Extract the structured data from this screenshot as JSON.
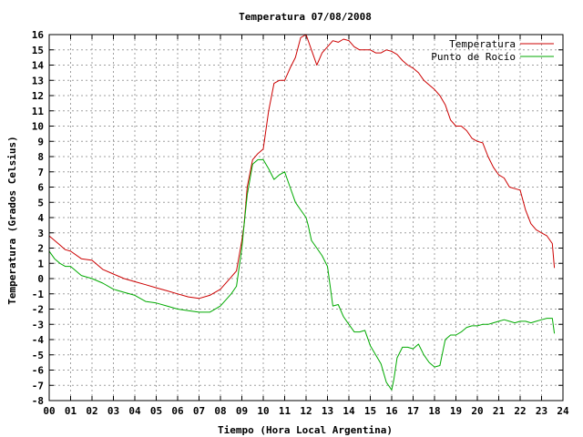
{
  "chart_data": {
    "type": "line",
    "title": "Temperatura 07/08/2008",
    "xlabel": "Tiempo (Hora Local Argentina)",
    "ylabel": "Temperatura (Grados Celsius)",
    "xlim": [
      0,
      24
    ],
    "ylim": [
      -8,
      16
    ],
    "x_ticks": [
      "00",
      "01",
      "02",
      "03",
      "04",
      "05",
      "06",
      "07",
      "08",
      "09",
      "10",
      "11",
      "12",
      "13",
      "14",
      "15",
      "16",
      "17",
      "18",
      "19",
      "20",
      "21",
      "22",
      "23",
      "24"
    ],
    "y_ticks": [
      -8,
      -7,
      -6,
      -5,
      -4,
      -3,
      -2,
      -1,
      0,
      1,
      2,
      3,
      4,
      5,
      6,
      7,
      8,
      9,
      10,
      11,
      12,
      13,
      14,
      15,
      16
    ],
    "grid": true,
    "legend_position": "top-right",
    "series": [
      {
        "name": "Temperatura",
        "color": "#cc0000",
        "x": [
          0,
          0.25,
          0.5,
          0.75,
          1,
          1.5,
          2,
          2.5,
          3,
          3.5,
          4,
          4.5,
          5,
          5.5,
          6,
          6.5,
          7,
          7.5,
          8,
          8.5,
          8.75,
          9,
          9.1,
          9.25,
          9.5,
          9.75,
          10,
          10.25,
          10.5,
          10.75,
          11,
          11.25,
          11.5,
          11.75,
          12,
          12.25,
          12.5,
          12.75,
          13,
          13.25,
          13.5,
          13.75,
          14,
          14.25,
          14.5,
          14.75,
          15,
          15.25,
          15.5,
          15.75,
          16,
          16.25,
          16.5,
          16.75,
          17,
          17.25,
          17.5,
          17.75,
          18,
          18.25,
          18.5,
          18.75,
          19,
          19.25,
          19.5,
          19.75,
          20,
          20.25,
          20.5,
          20.75,
          21,
          21.25,
          21.5,
          21.75,
          22,
          22.25,
          22.5,
          22.75,
          23,
          23.25,
          23.5,
          23.6
        ],
        "y": [
          2.8,
          2.5,
          2.2,
          1.9,
          1.8,
          1.3,
          1.2,
          0.6,
          0.3,
          0,
          -0.2,
          -0.4,
          -0.6,
          -0.8,
          -1,
          -1.2,
          -1.3,
          -1.1,
          -0.7,
          0.1,
          0.5,
          2.5,
          3.5,
          6,
          7.8,
          8.2,
          8.5,
          11,
          12.8,
          13,
          13,
          13.8,
          14.5,
          15.8,
          16,
          15,
          14,
          14.8,
          15.2,
          15.6,
          15.5,
          15.7,
          15.6,
          15.2,
          15,
          15,
          15,
          14.8,
          14.8,
          15,
          14.9,
          14.7,
          14.3,
          14,
          13.8,
          13.5,
          13,
          12.7,
          12.4,
          12,
          11.4,
          10.4,
          10,
          10,
          9.7,
          9.2,
          9,
          8.9,
          8,
          7.3,
          6.8,
          6.6,
          6,
          5.9,
          5.8,
          4.5,
          3.6,
          3.2,
          3,
          2.8,
          2.3,
          0.7
        ]
      },
      {
        "name": "Punto de Rocío",
        "color": "#00aa00",
        "x": [
          0,
          0.25,
          0.5,
          0.75,
          1,
          1.5,
          2,
          2.5,
          3,
          3.5,
          4,
          4.5,
          5,
          5.5,
          6,
          6.5,
          7,
          7.5,
          8,
          8.5,
          8.75,
          9,
          9.1,
          9.25,
          9.5,
          9.75,
          10,
          10.25,
          10.5,
          10.75,
          11,
          11.25,
          11.5,
          11.75,
          12,
          12.1,
          12.25,
          12.5,
          12.75,
          13,
          13.25,
          13.5,
          13.75,
          14,
          14.25,
          14.5,
          14.75,
          15,
          15.25,
          15.5,
          15.75,
          16,
          16.1,
          16.25,
          16.5,
          16.75,
          17,
          17.25,
          17.5,
          17.75,
          18,
          18.25,
          18.5,
          18.75,
          19,
          19.25,
          19.5,
          19.75,
          20,
          20.25,
          20.5,
          20.75,
          21,
          21.25,
          21.5,
          21.75,
          22,
          22.25,
          22.5,
          22.75,
          23,
          23.25,
          23.5,
          23.6
        ],
        "y": [
          1.8,
          1.3,
          1,
          0.8,
          0.8,
          0.2,
          0,
          -0.3,
          -0.7,
          -0.9,
          -1.1,
          -1.5,
          -1.6,
          -1.8,
          -2,
          -2.1,
          -2.2,
          -2.2,
          -1.8,
          -1,
          -0.5,
          2,
          3.5,
          5.5,
          7.5,
          7.8,
          7.8,
          7.2,
          6.5,
          6.8,
          7,
          6,
          5,
          4.5,
          4,
          3.5,
          2.5,
          2,
          1.5,
          0.8,
          -1.8,
          -1.7,
          -2.5,
          -3,
          -3.5,
          -3.5,
          -3.4,
          -4.4,
          -5,
          -5.6,
          -6.8,
          -7.3,
          -6.6,
          -5.2,
          -4.5,
          -4.5,
          -4.6,
          -4.3,
          -5,
          -5.5,
          -5.8,
          -5.7,
          -4,
          -3.7,
          -3.7,
          -3.5,
          -3.2,
          -3.1,
          -3.1,
          -3,
          -3,
          -2.9,
          -2.8,
          -2.7,
          -2.8,
          -2.9,
          -2.8,
          -2.8,
          -2.9,
          -2.8,
          -2.7,
          -2.6,
          -2.6,
          -3.6
        ]
      }
    ]
  }
}
